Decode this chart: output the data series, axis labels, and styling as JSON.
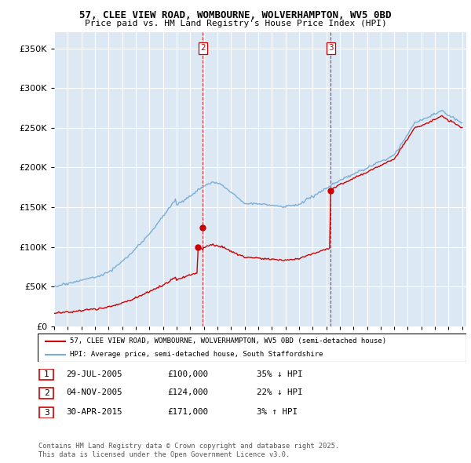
{
  "title1": "57, CLEE VIEW ROAD, WOMBOURNE, WOLVERHAMPTON, WV5 0BD",
  "title2": "Price paid vs. HM Land Registry's House Price Index (HPI)",
  "legend_line1": "57, CLEE VIEW ROAD, WOMBOURNE, WOLVERHAMPTON, WV5 0BD (semi-detached house)",
  "legend_line2": "HPI: Average price, semi-detached house, South Staffordshire",
  "transactions": [
    {
      "num": 1,
      "date": "29-JUL-2005",
      "price": "£100,000",
      "pct": "35% ↓ HPI"
    },
    {
      "num": 2,
      "date": "04-NOV-2005",
      "price": "£124,000",
      "pct": "22% ↓ HPI"
    },
    {
      "num": 3,
      "date": "30-APR-2015",
      "price": "£171,000",
      "pct": "3% ↑ HPI"
    }
  ],
  "footnote1": "Contains HM Land Registry data © Crown copyright and database right 2025.",
  "footnote2": "This data is licensed under the Open Government Licence v3.0.",
  "red_color": "#cc0000",
  "blue_color": "#7aadd4",
  "vline_color": "#cc0000",
  "chart_bg": "#dce9f5",
  "background_color": "#ffffff",
  "grid_color": "#ffffff",
  "ylim": [
    0,
    370000
  ],
  "yticks": [
    0,
    50000,
    100000,
    150000,
    200000,
    250000,
    300000,
    350000
  ],
  "vline2_year": 2005.92,
  "vline3_year": 2015.33,
  "sale1_year": 2005.57,
  "sale1_price": 100000,
  "sale2_year": 2005.92,
  "sale2_price": 124000,
  "sale3_year": 2015.33,
  "sale3_price": 171000
}
